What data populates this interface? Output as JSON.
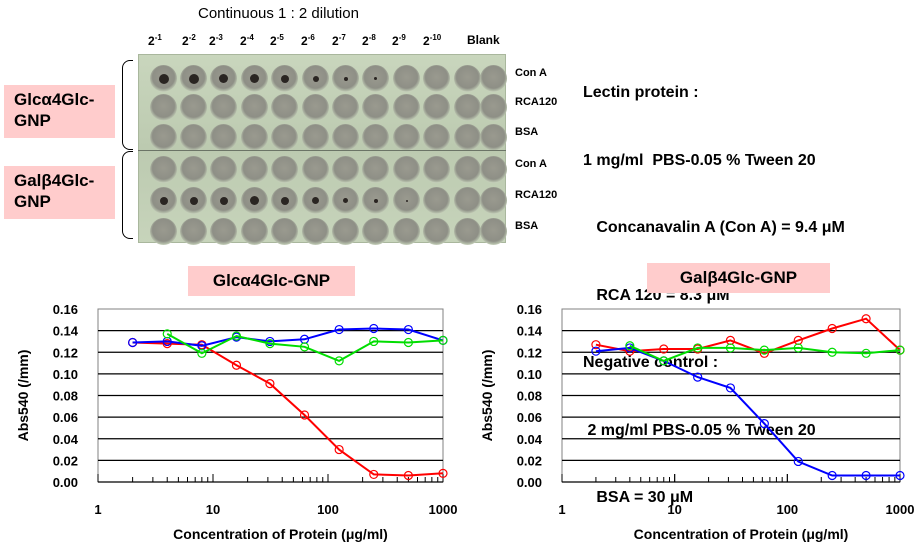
{
  "plate": {
    "title": "Continuous 1 : 2 dilution",
    "dilutions": [
      {
        "base": "2",
        "exp": "-1"
      },
      {
        "base": "2",
        "exp": "-2"
      },
      {
        "base": "2",
        "exp": "-3"
      },
      {
        "base": "2",
        "exp": "-4"
      },
      {
        "base": "2",
        "exp": "-5"
      },
      {
        "base": "2",
        "exp": "-6"
      },
      {
        "base": "2",
        "exp": "-7"
      },
      {
        "base": "2",
        "exp": "-8"
      },
      {
        "base": "2",
        "exp": "-9"
      },
      {
        "base": "2",
        "exp": "-10"
      }
    ],
    "blank_label": "Blank",
    "row_labels": [
      "Con A",
      "RCA120",
      "BSA",
      "Con A",
      "RCA120",
      "BSA"
    ],
    "group_labels": [
      "Glcα4Glc-\nGNP",
      "Galβ4Glc-\nGNP"
    ],
    "group_label_lines": [
      [
        "Glcα4Glc-",
        "GNP"
      ],
      [
        "Galβ4Glc-",
        "GNP"
      ]
    ],
    "precipitate_rows": {
      "row0_dot_sizes": [
        10,
        10,
        9,
        9,
        8,
        6,
        4,
        3,
        0,
        0,
        0,
        0
      ],
      "row4_dot_sizes": [
        8,
        8,
        8,
        9,
        8,
        7,
        5,
        4,
        2,
        0,
        0,
        0
      ]
    }
  },
  "info": {
    "lines": [
      "Lectin protein :",
      "1 mg/ml  PBS-0.05 % Tween 20",
      "   Concanavalin A (Con A) = 9.4 μM",
      "   RCA 120 = 8.3 μM",
      "Negative control :",
      " 2 mg/ml PBS-0.05 % Tween 20",
      "   BSA = 30 μM"
    ]
  },
  "chart_data": [
    {
      "type": "line",
      "title": "Glcα4Glc-GNP",
      "xlabel": "Concentration of Protein (μg/ml)",
      "ylabel": "Abs540 (/mm)",
      "xscale": "log",
      "xlim": [
        1,
        1000
      ],
      "ylim": [
        0,
        0.16
      ],
      "xticks": [
        "1",
        "10",
        "100",
        "1000"
      ],
      "yticks": [
        "0.00",
        "0.02",
        "0.04",
        "0.06",
        "0.08",
        "0.10",
        "0.12",
        "0.14",
        "0.16"
      ],
      "grid": "horizontal",
      "legend": "none",
      "series": [
        {
          "name": "Con A",
          "color": "#ff0000",
          "x": [
            2,
            4,
            8,
            16,
            31.25,
            62.5,
            125,
            250,
            500,
            1000
          ],
          "y": [
            0.129,
            0.128,
            0.127,
            0.108,
            0.091,
            0.062,
            0.03,
            0.007,
            0.006,
            0.008
          ]
        },
        {
          "name": "RCA120",
          "color": "#0000ff",
          "x": [
            2,
            4,
            8,
            16,
            31.25,
            62.5,
            125,
            250,
            500,
            1000
          ],
          "y": [
            0.129,
            0.13,
            0.126,
            0.134,
            0.13,
            0.132,
            0.141,
            0.142,
            0.141,
            0.131
          ]
        },
        {
          "name": "BSA",
          "color": "#00dd00",
          "x": [
            4,
            8,
            16,
            31.25,
            62.5,
            125,
            250,
            500,
            1000
          ],
          "y": [
            0.137,
            0.119,
            0.135,
            0.128,
            0.125,
            0.112,
            0.13,
            0.129,
            0.131
          ]
        }
      ]
    },
    {
      "type": "line",
      "title": "Galβ4Glc-GNP",
      "xlabel": "Concentration of Protein (μg/ml)",
      "ylabel": "Abs540 (/mm)",
      "xscale": "log",
      "xlim": [
        1,
        1000
      ],
      "ylim": [
        0,
        0.16
      ],
      "xticks": [
        "1",
        "10",
        "100",
        "1000"
      ],
      "yticks": [
        "0.00",
        "0.02",
        "0.04",
        "0.06",
        "0.08",
        "0.10",
        "0.12",
        "0.14",
        "0.16"
      ],
      "grid": "horizontal",
      "legend": "none",
      "series": [
        {
          "name": "Con A",
          "color": "#ff0000",
          "x": [
            2,
            4,
            8,
            16,
            31.25,
            62.5,
            125,
            250,
            500,
            1000
          ],
          "y": [
            0.127,
            0.121,
            0.123,
            0.123,
            0.131,
            0.119,
            0.131,
            0.142,
            0.151,
            0.122
          ]
        },
        {
          "name": "RCA120",
          "color": "#0000ff",
          "x": [
            2,
            4,
            8,
            16,
            31.25,
            62.5,
            125,
            250,
            500,
            1000
          ],
          "y": [
            0.121,
            0.124,
            0.112,
            0.097,
            0.087,
            0.054,
            0.019,
            0.006,
            0.006,
            0.006
          ]
        },
        {
          "name": "BSA",
          "color": "#00dd00",
          "x": [
            4,
            8,
            16,
            31.25,
            62.5,
            125,
            250,
            500,
            1000
          ],
          "y": [
            0.126,
            0.112,
            0.124,
            0.124,
            0.122,
            0.124,
            0.12,
            0.119,
            0.122
          ]
        }
      ]
    }
  ]
}
